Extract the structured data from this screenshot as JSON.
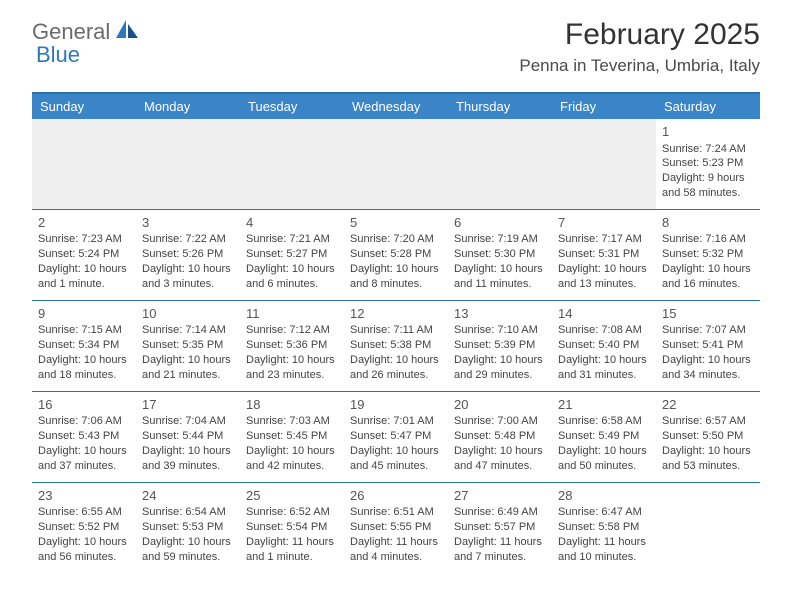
{
  "brand": {
    "general": "General",
    "blue": "Blue"
  },
  "title": "February 2025",
  "location": "Penna in Teverina, Umbria, Italy",
  "colors": {
    "header_bg": "#3a84c8",
    "border": "#2b6fb0",
    "text": "#333333",
    "brand_gray": "#6b6b6b",
    "brand_blue": "#2f78c0",
    "blank_bg": "#efefef"
  },
  "dayNames": [
    "Sunday",
    "Monday",
    "Tuesday",
    "Wednesday",
    "Thursday",
    "Friday",
    "Saturday"
  ],
  "weeks": [
    [
      null,
      null,
      null,
      null,
      null,
      null,
      {
        "n": "1",
        "sr": "Sunrise: 7:24 AM",
        "ss": "Sunset: 5:23 PM",
        "dl": "Daylight: 9 hours and 58 minutes."
      }
    ],
    [
      {
        "n": "2",
        "sr": "Sunrise: 7:23 AM",
        "ss": "Sunset: 5:24 PM",
        "dl": "Daylight: 10 hours and 1 minute."
      },
      {
        "n": "3",
        "sr": "Sunrise: 7:22 AM",
        "ss": "Sunset: 5:26 PM",
        "dl": "Daylight: 10 hours and 3 minutes."
      },
      {
        "n": "4",
        "sr": "Sunrise: 7:21 AM",
        "ss": "Sunset: 5:27 PM",
        "dl": "Daylight: 10 hours and 6 minutes."
      },
      {
        "n": "5",
        "sr": "Sunrise: 7:20 AM",
        "ss": "Sunset: 5:28 PM",
        "dl": "Daylight: 10 hours and 8 minutes."
      },
      {
        "n": "6",
        "sr": "Sunrise: 7:19 AM",
        "ss": "Sunset: 5:30 PM",
        "dl": "Daylight: 10 hours and 11 minutes."
      },
      {
        "n": "7",
        "sr": "Sunrise: 7:17 AM",
        "ss": "Sunset: 5:31 PM",
        "dl": "Daylight: 10 hours and 13 minutes."
      },
      {
        "n": "8",
        "sr": "Sunrise: 7:16 AM",
        "ss": "Sunset: 5:32 PM",
        "dl": "Daylight: 10 hours and 16 minutes."
      }
    ],
    [
      {
        "n": "9",
        "sr": "Sunrise: 7:15 AM",
        "ss": "Sunset: 5:34 PM",
        "dl": "Daylight: 10 hours and 18 minutes."
      },
      {
        "n": "10",
        "sr": "Sunrise: 7:14 AM",
        "ss": "Sunset: 5:35 PM",
        "dl": "Daylight: 10 hours and 21 minutes."
      },
      {
        "n": "11",
        "sr": "Sunrise: 7:12 AM",
        "ss": "Sunset: 5:36 PM",
        "dl": "Daylight: 10 hours and 23 minutes."
      },
      {
        "n": "12",
        "sr": "Sunrise: 7:11 AM",
        "ss": "Sunset: 5:38 PM",
        "dl": "Daylight: 10 hours and 26 minutes."
      },
      {
        "n": "13",
        "sr": "Sunrise: 7:10 AM",
        "ss": "Sunset: 5:39 PM",
        "dl": "Daylight: 10 hours and 29 minutes."
      },
      {
        "n": "14",
        "sr": "Sunrise: 7:08 AM",
        "ss": "Sunset: 5:40 PM",
        "dl": "Daylight: 10 hours and 31 minutes."
      },
      {
        "n": "15",
        "sr": "Sunrise: 7:07 AM",
        "ss": "Sunset: 5:41 PM",
        "dl": "Daylight: 10 hours and 34 minutes."
      }
    ],
    [
      {
        "n": "16",
        "sr": "Sunrise: 7:06 AM",
        "ss": "Sunset: 5:43 PM",
        "dl": "Daylight: 10 hours and 37 minutes."
      },
      {
        "n": "17",
        "sr": "Sunrise: 7:04 AM",
        "ss": "Sunset: 5:44 PM",
        "dl": "Daylight: 10 hours and 39 minutes."
      },
      {
        "n": "18",
        "sr": "Sunrise: 7:03 AM",
        "ss": "Sunset: 5:45 PM",
        "dl": "Daylight: 10 hours and 42 minutes."
      },
      {
        "n": "19",
        "sr": "Sunrise: 7:01 AM",
        "ss": "Sunset: 5:47 PM",
        "dl": "Daylight: 10 hours and 45 minutes."
      },
      {
        "n": "20",
        "sr": "Sunrise: 7:00 AM",
        "ss": "Sunset: 5:48 PM",
        "dl": "Daylight: 10 hours and 47 minutes."
      },
      {
        "n": "21",
        "sr": "Sunrise: 6:58 AM",
        "ss": "Sunset: 5:49 PM",
        "dl": "Daylight: 10 hours and 50 minutes."
      },
      {
        "n": "22",
        "sr": "Sunrise: 6:57 AM",
        "ss": "Sunset: 5:50 PM",
        "dl": "Daylight: 10 hours and 53 minutes."
      }
    ],
    [
      {
        "n": "23",
        "sr": "Sunrise: 6:55 AM",
        "ss": "Sunset: 5:52 PM",
        "dl": "Daylight: 10 hours and 56 minutes."
      },
      {
        "n": "24",
        "sr": "Sunrise: 6:54 AM",
        "ss": "Sunset: 5:53 PM",
        "dl": "Daylight: 10 hours and 59 minutes."
      },
      {
        "n": "25",
        "sr": "Sunrise: 6:52 AM",
        "ss": "Sunset: 5:54 PM",
        "dl": "Daylight: 11 hours and 1 minute."
      },
      {
        "n": "26",
        "sr": "Sunrise: 6:51 AM",
        "ss": "Sunset: 5:55 PM",
        "dl": "Daylight: 11 hours and 4 minutes."
      },
      {
        "n": "27",
        "sr": "Sunrise: 6:49 AM",
        "ss": "Sunset: 5:57 PM",
        "dl": "Daylight: 11 hours and 7 minutes."
      },
      {
        "n": "28",
        "sr": "Sunrise: 6:47 AM",
        "ss": "Sunset: 5:58 PM",
        "dl": "Daylight: 11 hours and 10 minutes."
      },
      null
    ]
  ]
}
